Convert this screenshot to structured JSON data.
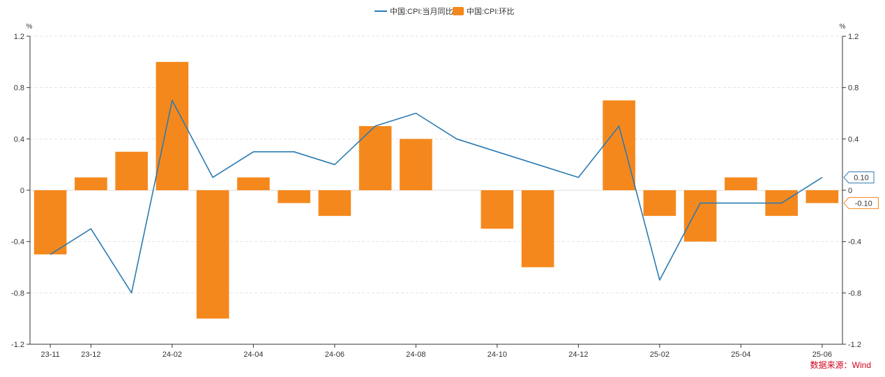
{
  "chart_data": {
    "type": "bar",
    "categories": [
      "23-11",
      "23-12",
      "24-01",
      "24-02",
      "24-03",
      "24-04",
      "24-05",
      "24-06",
      "24-07",
      "24-08",
      "24-09",
      "24-10",
      "24-11",
      "24-12",
      "25-01",
      "25-02",
      "25-03",
      "25-04",
      "25-05",
      "25-06"
    ],
    "x_tick_labels": [
      "23-11",
      "23-12",
      "24-02",
      "24-04",
      "24-06",
      "24-08",
      "24-10",
      "24-12",
      "25-02",
      "25-04",
      "25-06"
    ],
    "series": [
      {
        "name": "中国:CPI:当月同比",
        "type": "line",
        "color": "#2b7bb0",
        "values": [
          -0.5,
          -0.3,
          -0.8,
          0.7,
          0.1,
          0.3,
          0.3,
          0.2,
          0.5,
          0.6,
          0.4,
          0.3,
          0.2,
          0.1,
          0.5,
          -0.7,
          -0.1,
          -0.1,
          -0.1,
          0.1
        ]
      },
      {
        "name": "中国:CPI:环比",
        "type": "bar",
        "color": "#f5881d",
        "values": [
          -0.5,
          0.1,
          0.3,
          1.0,
          -1.0,
          0.1,
          -0.1,
          -0.2,
          0.5,
          0.4,
          0.0,
          -0.3,
          -0.6,
          0.0,
          0.7,
          -0.2,
          -0.4,
          0.1,
          -0.2,
          -0.1
        ]
      }
    ],
    "y_ticks": [
      "1.2",
      "0.8",
      "0.4",
      "0",
      "-0.4",
      "-0.8",
      "-1.2"
    ],
    "ylim": [
      -1.2,
      1.2
    ],
    "y_unit_left": "%",
    "y_unit_right": "%",
    "last_value_tags": [
      "0.10",
      "-0.10"
    ],
    "grid": "horizontal dashed",
    "legend_position": "top-center",
    "source": "数据来源：Wind"
  }
}
